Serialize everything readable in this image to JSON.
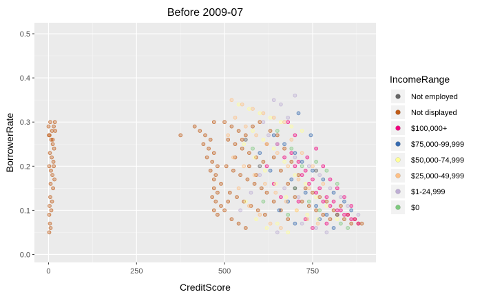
{
  "chart_data": {
    "type": "scatter",
    "title": "Before 2009-07",
    "xlabel": "CreditScore",
    "ylabel": "BorrowerRate",
    "xlim": [
      -40,
      930
    ],
    "ylim": [
      -0.018,
      0.525
    ],
    "x_ticks": [
      0,
      250,
      500,
      750
    ],
    "x_tick_labels": [
      "0",
      "250",
      "500",
      "750"
    ],
    "y_ticks": [
      0.0,
      0.1,
      0.2,
      0.3,
      0.4,
      0.5
    ],
    "y_tick_labels": [
      "0.0",
      "0.1",
      "0.2",
      "0.3",
      "0.4",
      "0.5"
    ],
    "grid": true,
    "legend_position": "right",
    "legend": {
      "title": "IncomeRange",
      "entries": [
        {
          "label": "Not employed",
          "color": "#666666"
        },
        {
          "label": "Not displayed",
          "color": "#bf5b17"
        },
        {
          "label": "$100,000+",
          "color": "#f0027f"
        },
        {
          "label": "$75,000-99,999",
          "color": "#386cb0"
        },
        {
          "label": "$50,000-74,999",
          "color": "#ffff99"
        },
        {
          "label": "$25,000-49,999",
          "color": "#fdc086"
        },
        {
          "label": "$1-24,999",
          "color": "#beaed4"
        },
        {
          "label": "$0",
          "color": "#7fc97f"
        }
      ]
    },
    "series": [
      {
        "name": "Not displayed",
        "color": "#bf5b17",
        "points": [
          [
            0,
            0.29
          ],
          [
            5,
            0.3
          ],
          [
            10,
            0.28
          ],
          [
            15,
            0.29
          ],
          [
            18,
            0.3
          ],
          [
            3,
            0.27
          ],
          [
            8,
            0.26
          ],
          [
            12,
            0.25
          ],
          [
            16,
            0.24
          ],
          [
            4,
            0.23
          ],
          [
            9,
            0.22
          ],
          [
            14,
            0.21
          ],
          [
            2,
            0.2
          ],
          [
            7,
            0.19
          ],
          [
            11,
            0.18
          ],
          [
            17,
            0.17
          ],
          [
            6,
            0.16
          ],
          [
            13,
            0.15
          ],
          [
            1,
            0.27
          ],
          [
            19,
            0.28
          ],
          [
            5,
            0.13
          ],
          [
            3,
            0.11
          ],
          [
            8,
            0.1
          ],
          [
            2,
            0.09
          ],
          [
            4,
            0.07
          ],
          [
            6,
            0.06
          ],
          [
            2,
            0.05
          ],
          [
            10,
            0.12
          ],
          [
            15,
            0.2
          ],
          [
            12,
            0.26
          ],
          [
            375,
            0.27
          ],
          [
            470,
            0.3
          ],
          [
            415,
            0.29
          ],
          [
            430,
            0.28
          ],
          [
            445,
            0.27
          ],
          [
            460,
            0.26
          ],
          [
            440,
            0.25
          ],
          [
            455,
            0.24
          ],
          [
            470,
            0.23
          ],
          [
            450,
            0.22
          ],
          [
            465,
            0.21
          ],
          [
            480,
            0.2
          ],
          [
            460,
            0.19
          ],
          [
            475,
            0.18
          ],
          [
            470,
            0.17
          ],
          [
            490,
            0.16
          ],
          [
            470,
            0.15
          ],
          [
            480,
            0.14
          ],
          [
            465,
            0.13
          ],
          [
            475,
            0.12
          ],
          [
            470,
            0.1
          ],
          [
            480,
            0.09
          ],
          [
            490,
            0.11
          ],
          [
            500,
            0.3
          ],
          [
            520,
            0.29
          ],
          [
            540,
            0.28
          ],
          [
            560,
            0.27
          ],
          [
            580,
            0.29
          ],
          [
            600,
            0.3
          ],
          [
            510,
            0.26
          ],
          [
            530,
            0.25
          ],
          [
            550,
            0.24
          ],
          [
            570,
            0.23
          ],
          [
            590,
            0.22
          ],
          [
            610,
            0.21
          ],
          [
            505,
            0.2
          ],
          [
            525,
            0.19
          ],
          [
            545,
            0.18
          ],
          [
            565,
            0.17
          ],
          [
            585,
            0.16
          ],
          [
            605,
            0.15
          ],
          [
            515,
            0.14
          ],
          [
            535,
            0.13
          ],
          [
            555,
            0.12
          ],
          [
            575,
            0.11
          ],
          [
            595,
            0.1
          ],
          [
            615,
            0.09
          ],
          [
            520,
            0.08
          ],
          [
            540,
            0.07
          ],
          [
            560,
            0.06
          ],
          [
            500,
            0.1
          ],
          [
            510,
            0.12
          ],
          [
            530,
            0.22
          ],
          [
            550,
            0.26
          ],
          [
            570,
            0.2
          ],
          [
            590,
            0.18
          ],
          [
            620,
            0.25
          ],
          [
            640,
            0.22
          ],
          [
            660,
            0.19
          ],
          [
            680,
            0.16
          ],
          [
            700,
            0.13
          ],
          [
            720,
            0.12
          ],
          [
            740,
            0.11
          ],
          [
            760,
            0.1
          ],
          [
            780,
            0.09
          ],
          [
            800,
            0.08
          ],
          [
            820,
            0.09
          ],
          [
            840,
            0.08
          ],
          [
            860,
            0.07
          ],
          [
            880,
            0.07
          ],
          [
            630,
            0.28
          ],
          [
            650,
            0.27
          ],
          [
            670,
            0.24
          ],
          [
            690,
            0.21
          ],
          [
            710,
            0.18
          ],
          [
            730,
            0.15
          ],
          [
            750,
            0.14
          ],
          [
            770,
            0.13
          ],
          [
            790,
            0.12
          ],
          [
            810,
            0.1
          ],
          [
            830,
            0.11
          ],
          [
            850,
            0.09
          ],
          [
            870,
            0.08
          ],
          [
            890,
            0.07
          ],
          [
            660,
            0.1
          ],
          [
            680,
            0.08
          ],
          [
            640,
            0.12
          ],
          [
            620,
            0.14
          ]
        ]
      },
      {
        "name": "$100,000+",
        "color": "#f0027f",
        "points": [
          [
            700,
            0.2
          ],
          [
            720,
            0.18
          ],
          [
            740,
            0.16
          ],
          [
            760,
            0.14
          ],
          [
            780,
            0.12
          ],
          [
            800,
            0.11
          ],
          [
            820,
            0.1
          ],
          [
            840,
            0.09
          ],
          [
            860,
            0.08
          ],
          [
            880,
            0.07
          ],
          [
            690,
            0.23
          ],
          [
            710,
            0.21
          ],
          [
            730,
            0.19
          ],
          [
            750,
            0.17
          ],
          [
            770,
            0.15
          ],
          [
            790,
            0.13
          ],
          [
            810,
            0.12
          ],
          [
            830,
            0.1
          ],
          [
            850,
            0.09
          ],
          [
            870,
            0.08
          ],
          [
            650,
            0.25
          ],
          [
            670,
            0.22
          ],
          [
            760,
            0.24
          ],
          [
            800,
            0.17
          ],
          [
            820,
            0.15
          ],
          [
            840,
            0.13
          ],
          [
            860,
            0.11
          ],
          [
            780,
            0.2
          ],
          [
            735,
            0.22
          ],
          [
            700,
            0.27
          ],
          [
            680,
            0.3
          ],
          [
            710,
            0.12
          ],
          [
            730,
            0.08
          ],
          [
            750,
            0.06
          ],
          [
            790,
            0.07
          ],
          [
            620,
            0.2
          ],
          [
            640,
            0.16
          ],
          [
            660,
            0.13
          ]
        ]
      },
      {
        "name": "$75,000-99,999",
        "color": "#386cb0",
        "points": [
          [
            640,
            0.27
          ],
          [
            670,
            0.25
          ],
          [
            700,
            0.23
          ],
          [
            720,
            0.21
          ],
          [
            750,
            0.19
          ],
          [
            780,
            0.17
          ],
          [
            810,
            0.14
          ],
          [
            840,
            0.12
          ],
          [
            860,
            0.1
          ],
          [
            690,
            0.17
          ],
          [
            730,
            0.14
          ],
          [
            760,
            0.11
          ],
          [
            790,
            0.09
          ],
          [
            680,
            0.12
          ],
          [
            630,
            0.19
          ],
          [
            655,
            0.1
          ],
          [
            700,
            0.07
          ],
          [
            745,
            0.27
          ],
          [
            810,
            0.06
          ],
          [
            600,
            0.23
          ],
          [
            710,
            0.32
          ],
          [
            770,
            0.08
          ]
        ]
      },
      {
        "name": "$50,000-74,999",
        "color": "#ffff99",
        "points": [
          [
            540,
            0.34
          ],
          [
            570,
            0.33
          ],
          [
            600,
            0.32
          ],
          [
            630,
            0.31
          ],
          [
            660,
            0.3
          ],
          [
            690,
            0.29
          ],
          [
            720,
            0.28
          ],
          [
            555,
            0.25
          ],
          [
            585,
            0.22
          ],
          [
            615,
            0.19
          ],
          [
            645,
            0.16
          ],
          [
            675,
            0.13
          ],
          [
            705,
            0.1
          ],
          [
            735,
            0.09
          ],
          [
            765,
            0.08
          ],
          [
            580,
            0.28
          ],
          [
            610,
            0.26
          ],
          [
            640,
            0.24
          ],
          [
            670,
            0.21
          ],
          [
            700,
            0.18
          ],
          [
            730,
            0.16
          ],
          [
            760,
            0.13
          ],
          [
            790,
            0.11
          ],
          [
            820,
            0.08
          ],
          [
            560,
            0.12
          ],
          [
            590,
            0.08
          ],
          [
            620,
            0.06
          ],
          [
            650,
            0.07
          ],
          [
            680,
            0.05
          ]
        ]
      },
      {
        "name": "$25,000-49,999",
        "color": "#fdc086",
        "points": [
          [
            520,
            0.35
          ],
          [
            550,
            0.34
          ],
          [
            580,
            0.33
          ],
          [
            610,
            0.32
          ],
          [
            640,
            0.31
          ],
          [
            670,
            0.3
          ],
          [
            530,
            0.31
          ],
          [
            560,
            0.29
          ],
          [
            590,
            0.27
          ],
          [
            620,
            0.25
          ],
          [
            650,
            0.23
          ],
          [
            680,
            0.2
          ],
          [
            710,
            0.17
          ],
          [
            740,
            0.15
          ],
          [
            525,
            0.22
          ],
          [
            555,
            0.2
          ],
          [
            585,
            0.18
          ],
          [
            615,
            0.16
          ],
          [
            645,
            0.14
          ],
          [
            675,
            0.12
          ],
          [
            705,
            0.1
          ],
          [
            735,
            0.08
          ],
          [
            765,
            0.07
          ],
          [
            540,
            0.15
          ],
          [
            570,
            0.11
          ],
          [
            600,
            0.09
          ],
          [
            630,
            0.07
          ],
          [
            660,
            0.06
          ],
          [
            510,
            0.27
          ],
          [
            690,
            0.26
          ],
          [
            720,
            0.23
          ],
          [
            750,
            0.2
          ],
          [
            780,
            0.16
          ]
        ]
      },
      {
        "name": "$1-24,999",
        "color": "#beaed4",
        "points": [
          [
            640,
            0.35
          ],
          [
            660,
            0.34
          ],
          [
            700,
            0.36
          ],
          [
            680,
            0.31
          ],
          [
            610,
            0.3
          ],
          [
            625,
            0.27
          ],
          [
            650,
            0.25
          ],
          [
            700,
            0.22
          ],
          [
            740,
            0.2
          ],
          [
            770,
            0.18
          ],
          [
            800,
            0.15
          ],
          [
            830,
            0.13
          ],
          [
            850,
            0.11
          ],
          [
            880,
            0.09
          ],
          [
            720,
            0.07
          ],
          [
            760,
            0.06
          ],
          [
            790,
            0.05
          ],
          [
            600,
            0.18
          ],
          [
            575,
            0.14
          ],
          [
            545,
            0.1
          ],
          [
            670,
            0.15
          ],
          [
            710,
            0.13
          ],
          [
            650,
            0.05
          ]
        ]
      },
      {
        "name": "$0",
        "color": "#7fc97f",
        "points": [
          [
            650,
            0.28
          ],
          [
            690,
            0.24
          ],
          [
            720,
            0.2
          ],
          [
            760,
            0.21
          ],
          [
            790,
            0.19
          ],
          [
            820,
            0.16
          ],
          [
            830,
            0.07
          ],
          [
            850,
            0.06
          ],
          [
            700,
            0.15
          ],
          [
            740,
            0.12
          ],
          [
            610,
            0.12
          ],
          [
            580,
            0.24
          ],
          [
            770,
            0.1
          ],
          [
            680,
            0.09
          ]
        ]
      },
      {
        "name": "Not employed",
        "color": "#666666",
        "points": [
          [
            600,
            0.2
          ],
          [
            700,
            0.15
          ],
          [
            760,
            0.19
          ],
          [
            820,
            0.09
          ],
          [
            560,
            0.26
          ]
        ]
      }
    ]
  }
}
